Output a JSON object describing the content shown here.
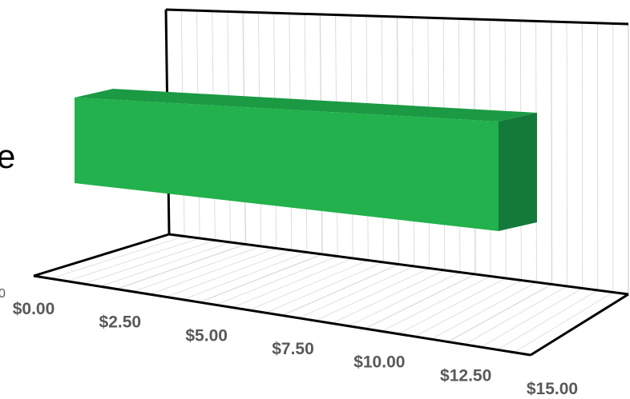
{
  "chart_data": {
    "type": "bar",
    "orientation": "horizontal",
    "style": "3d",
    "categories": [
      ""
    ],
    "values": [
      13.1
    ],
    "xlim": [
      0,
      15
    ],
    "x_ticks": [
      "$0.00",
      "$2.50",
      "$5.00",
      "$7.50",
      "$10.00",
      "$12.50",
      "$15.00"
    ],
    "grid": true,
    "legend": "none",
    "cut_off_text": {
      "left_edge_label": "e",
      "left_edge_tick": "0"
    }
  },
  "colors": {
    "bar_front": "#22b14c",
    "bar_top": "#1b9a43",
    "bar_side": "#147a3a",
    "tick_text": "#595959",
    "frame": "#000000",
    "grid": "#d9d9d9"
  }
}
